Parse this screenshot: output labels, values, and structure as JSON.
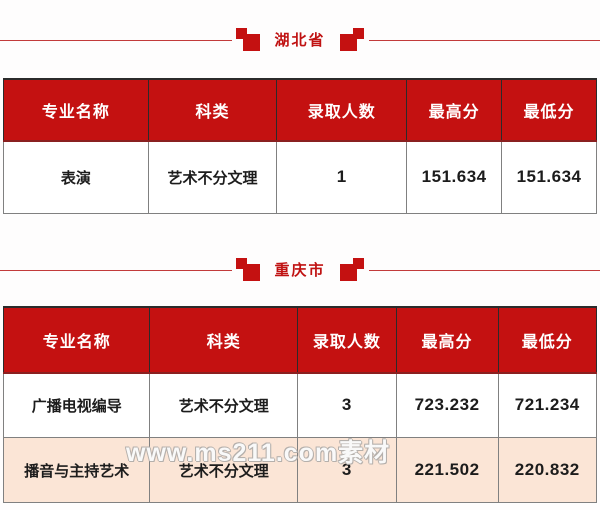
{
  "colors": {
    "page_bg": "#fefdfd",
    "header_red": "#c41111",
    "deco_red": "#c41111",
    "line_red": "#c23b3b",
    "title_red": "#c01212",
    "row_highlight": "#fbe5d6",
    "border_gray": "#808080",
    "border_dark": "#2b2b2b",
    "text_dark": "#1c1c1c"
  },
  "sections": [
    {
      "title": "湖北省",
      "table": {
        "headers": [
          "专业名称",
          "科类",
          "录取人数",
          "最高分",
          "最低分"
        ],
        "rows": [
          {
            "cells": [
              "表演",
              "艺术不分文理",
              "1",
              "151.634",
              "151.634"
            ]
          }
        ]
      }
    },
    {
      "title": "重庆市",
      "table": {
        "headers": [
          "专业名称",
          "科类",
          "录取人数",
          "最高分",
          "最低分"
        ],
        "rows": [
          {
            "cells": [
              "广播电视编导",
              "艺术不分文理",
              "3",
              "723.232",
              "721.234"
            ]
          },
          {
            "cells": [
              "播音与主持艺术",
              "艺术不分文理",
              "3",
              "221.502",
              "220.832"
            ]
          }
        ]
      }
    }
  ],
  "watermark": {
    "text": "www.ms211.com素材"
  }
}
